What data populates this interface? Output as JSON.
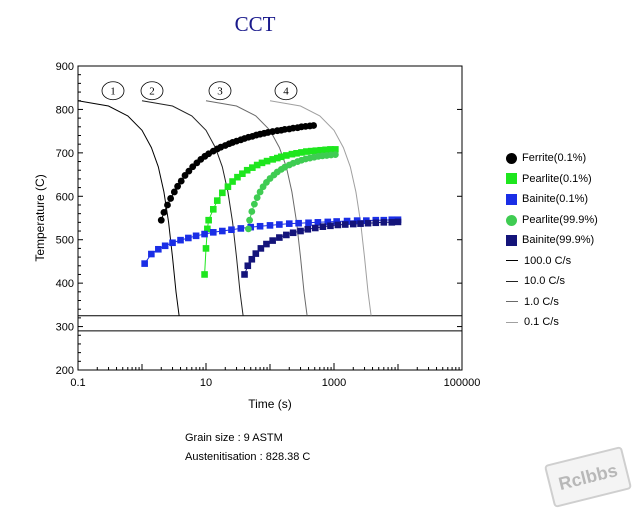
{
  "title": "CCT",
  "chart_data": {
    "type": "line",
    "title": "CCT",
    "xlabel": "Time (s)",
    "ylabel": "Temperature (C)",
    "xscale": "log",
    "xlim": [
      0.1,
      100000
    ],
    "ylim": [
      200,
      900
    ],
    "xticks": [
      0.1,
      10,
      1000,
      100000
    ],
    "xtick_labels": [
      "0.1",
      "10",
      "1000",
      "100000"
    ],
    "yticks": [
      200,
      300,
      400,
      500,
      600,
      700,
      800,
      900
    ],
    "ytick_labels": [
      "200",
      "300",
      "400",
      "500",
      "600",
      "700",
      "800",
      "900"
    ],
    "grid": false,
    "legend_position": "right",
    "horizontal_lines": [
      325,
      290
    ],
    "cooling_curve_labels": [
      "1",
      "2",
      "3",
      "4"
    ],
    "series": [
      {
        "name": "Ferrite(0.1%)",
        "marker": "circle",
        "color": "#000000",
        "points": [
          [
            2.0,
            545
          ],
          [
            2.2,
            563
          ],
          [
            2.5,
            580
          ],
          [
            2.8,
            595
          ],
          [
            3.2,
            610
          ],
          [
            3.6,
            623
          ],
          [
            4.1,
            635
          ],
          [
            4.7,
            648
          ],
          [
            5.4,
            658
          ],
          [
            6.2,
            668
          ],
          [
            7.2,
            677
          ],
          [
            8.3,
            685
          ],
          [
            9.6,
            692
          ],
          [
            11,
            698
          ],
          [
            13,
            704
          ],
          [
            15,
            709
          ],
          [
            17,
            713
          ],
          [
            20,
            717
          ],
          [
            23,
            721
          ],
          [
            26,
            724
          ],
          [
            30,
            727
          ],
          [
            35,
            730
          ],
          [
            40,
            733
          ],
          [
            46,
            736
          ],
          [
            53,
            738
          ],
          [
            61,
            741
          ],
          [
            70,
            743
          ],
          [
            81,
            745
          ],
          [
            93,
            747
          ],
          [
            110,
            749
          ],
          [
            130,
            751
          ],
          [
            150,
            752
          ],
          [
            170,
            754
          ],
          [
            200,
            755
          ],
          [
            230,
            757
          ],
          [
            270,
            758
          ],
          [
            310,
            760
          ],
          [
            360,
            761
          ],
          [
            420,
            762
          ],
          [
            480,
            763
          ]
        ]
      },
      {
        "name": "Pearlite(0.1%)",
        "marker": "square",
        "color": "#1ee61e",
        "points": [
          [
            9.5,
            420
          ],
          [
            10,
            480
          ],
          [
            10.5,
            525
          ],
          [
            11,
            545
          ],
          [
            13,
            570
          ],
          [
            15,
            590
          ],
          [
            18,
            608
          ],
          [
            22,
            622
          ],
          [
            26,
            634
          ],
          [
            31,
            644
          ],
          [
            37,
            652
          ],
          [
            44,
            660
          ],
          [
            53,
            666
          ],
          [
            63,
            672
          ],
          [
            75,
            677
          ],
          [
            90,
            681
          ],
          [
            110,
            685
          ],
          [
            130,
            688
          ],
          [
            150,
            691
          ],
          [
            180,
            694
          ],
          [
            220,
            697
          ],
          [
            260,
            699
          ],
          [
            310,
            701
          ],
          [
            370,
            703
          ],
          [
            440,
            704
          ],
          [
            520,
            705
          ],
          [
            620,
            706
          ],
          [
            740,
            707
          ],
          [
            880,
            708
          ],
          [
            1050,
            708
          ]
        ]
      },
      {
        "name": "Bainite(0.1%)",
        "marker": "square",
        "color": "#1a2ee6",
        "points": [
          [
            1.1,
            445
          ],
          [
            1.4,
            467
          ],
          [
            1.8,
            478
          ],
          [
            2.3,
            486
          ],
          [
            3,
            493
          ],
          [
            4,
            499
          ],
          [
            5.3,
            504
          ],
          [
            7,
            509
          ],
          [
            9.5,
            513
          ],
          [
            13,
            517
          ],
          [
            18,
            520
          ],
          [
            25,
            523
          ],
          [
            35,
            526
          ],
          [
            50,
            529
          ],
          [
            70,
            531
          ],
          [
            100,
            533
          ],
          [
            140,
            535
          ],
          [
            200,
            537
          ],
          [
            280,
            538
          ],
          [
            400,
            539
          ],
          [
            560,
            540
          ],
          [
            800,
            541
          ],
          [
            1100,
            542
          ],
          [
            1600,
            543
          ],
          [
            2300,
            544
          ],
          [
            3200,
            544
          ],
          [
            4500,
            545
          ],
          [
            6000,
            545
          ],
          [
            8000,
            546
          ],
          [
            10000,
            546
          ]
        ]
      },
      {
        "name": "Pearlite(99.9%)",
        "marker": "circle",
        "color": "#3fcc52",
        "points": [
          [
            46,
            525
          ],
          [
            48,
            545
          ],
          [
            52,
            565
          ],
          [
            57,
            582
          ],
          [
            63,
            597
          ],
          [
            70,
            610
          ],
          [
            78,
            622
          ],
          [
            88,
            632
          ],
          [
            100,
            641
          ],
          [
            115,
            649
          ],
          [
            130,
            656
          ],
          [
            150,
            662
          ],
          [
            170,
            667
          ],
          [
            200,
            672
          ],
          [
            230,
            676
          ],
          [
            270,
            680
          ],
          [
            310,
            683
          ],
          [
            360,
            686
          ],
          [
            420,
            688
          ],
          [
            490,
            690
          ],
          [
            570,
            692
          ],
          [
            660,
            693
          ],
          [
            770,
            694
          ],
          [
            900,
            695
          ],
          [
            1050,
            696
          ]
        ]
      },
      {
        "name": "Bainite(99.9%)",
        "marker": "square",
        "color": "#14147a",
        "points": [
          [
            40,
            420
          ],
          [
            45,
            440
          ],
          [
            52,
            455
          ],
          [
            60,
            468
          ],
          [
            72,
            480
          ],
          [
            88,
            490
          ],
          [
            110,
            498
          ],
          [
            140,
            505
          ],
          [
            180,
            511
          ],
          [
            230,
            516
          ],
          [
            300,
            520
          ],
          [
            390,
            524
          ],
          [
            510,
            527
          ],
          [
            670,
            530
          ],
          [
            880,
            532
          ],
          [
            1150,
            534
          ],
          [
            1500,
            535
          ],
          [
            2000,
            536
          ],
          [
            2600,
            537
          ],
          [
            3400,
            538
          ],
          [
            4500,
            539
          ],
          [
            6000,
            540
          ],
          [
            8000,
            540
          ],
          [
            10000,
            541
          ]
        ]
      },
      {
        "name": "100.0 C/s",
        "line": true,
        "color": "#000000",
        "points": [
          [
            0.1,
            820
          ],
          [
            0.3,
            808
          ],
          [
            0.6,
            785
          ],
          [
            1.0,
            752
          ],
          [
            1.4,
            712
          ],
          [
            1.8,
            668
          ],
          [
            2.2,
            610
          ],
          [
            2.6,
            540
          ],
          [
            3.0,
            460
          ],
          [
            3.4,
            380
          ],
          [
            3.8,
            325
          ]
        ]
      },
      {
        "name": "10.0 C/s",
        "line": true,
        "color": "#222222",
        "points": [
          [
            1.0,
            820
          ],
          [
            3.0,
            808
          ],
          [
            6.0,
            785
          ],
          [
            10,
            752
          ],
          [
            14,
            712
          ],
          [
            18,
            668
          ],
          [
            22,
            610
          ],
          [
            26,
            540
          ],
          [
            30,
            460
          ],
          [
            34,
            380
          ],
          [
            38,
            325
          ]
        ]
      },
      {
        "name": "1.0 C/s",
        "line": true,
        "color": "#6a6a6a",
        "points": [
          [
            10,
            820
          ],
          [
            30,
            808
          ],
          [
            60,
            785
          ],
          [
            100,
            752
          ],
          [
            140,
            712
          ],
          [
            180,
            668
          ],
          [
            220,
            610
          ],
          [
            260,
            540
          ],
          [
            300,
            460
          ],
          [
            340,
            380
          ],
          [
            380,
            325
          ]
        ]
      },
      {
        "name": "0.1 C/s",
        "line": true,
        "color": "#a0a0a0",
        "points": [
          [
            100,
            820
          ],
          [
            300,
            808
          ],
          [
            600,
            785
          ],
          [
            1000,
            752
          ],
          [
            1400,
            712
          ],
          [
            1800,
            668
          ],
          [
            2200,
            610
          ],
          [
            2600,
            540
          ],
          [
            3000,
            460
          ],
          [
            3400,
            380
          ],
          [
            3800,
            325
          ]
        ]
      }
    ]
  },
  "legend": {
    "items": [
      {
        "label": "Ferrite(0.1%)",
        "shape": "circle",
        "color": "#000000"
      },
      {
        "label": "Pearlite(0.1%)",
        "shape": "square",
        "color": "#1ee61e"
      },
      {
        "label": "Bainite(0.1%)",
        "shape": "square",
        "color": "#1a2ee6"
      },
      {
        "label": "Pearlite(99.9%)",
        "shape": "circle",
        "color": "#3fcc52"
      },
      {
        "label": "Bainite(99.9%)",
        "shape": "square",
        "color": "#14147a"
      },
      {
        "label": "100.0 C/s",
        "shape": "line",
        "color": "#000000"
      },
      {
        "label": "10.0 C/s",
        "shape": "line",
        "color": "#222222"
      },
      {
        "label": "1.0 C/s",
        "shape": "line",
        "color": "#6a6a6a"
      },
      {
        "label": "0.1 C/s",
        "shape": "line",
        "color": "#a0a0a0"
      }
    ]
  },
  "footer": {
    "grain_size": "Grain size : 9 ASTM",
    "austenitisation": "Austenitisation : 828.38 C"
  },
  "watermark": {
    "text": "Rclbbs"
  }
}
